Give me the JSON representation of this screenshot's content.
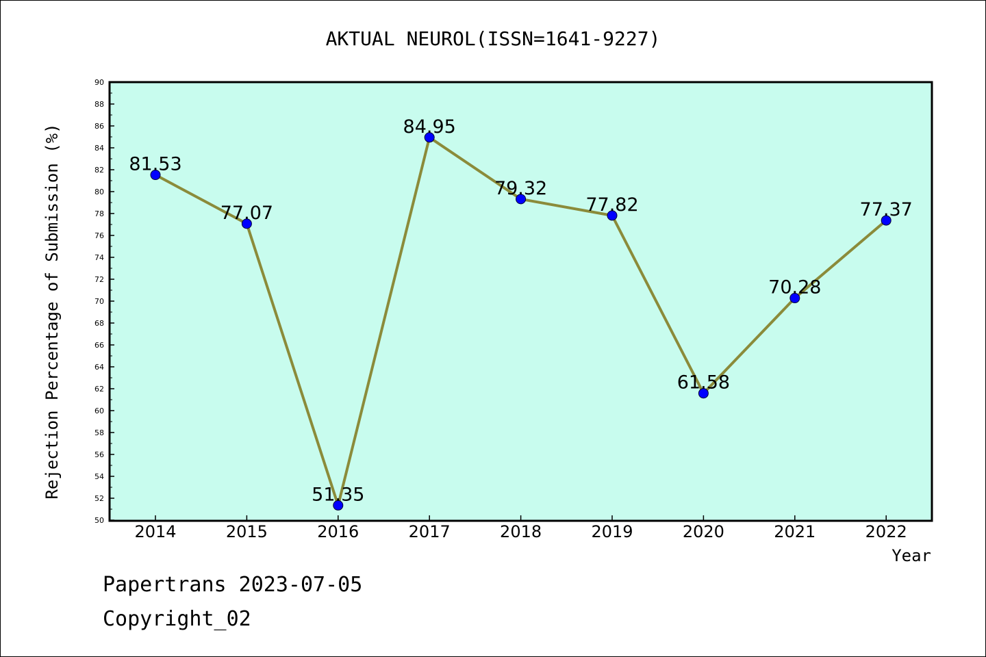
{
  "chart_data": {
    "type": "line",
    "title": "AKTUAL NEUROL(ISSN=1641-9227)",
    "xlabel": "Year",
    "ylabel": "Rejection Percentage of Submission (%)",
    "categories": [
      "2014",
      "2015",
      "2016",
      "2017",
      "2018",
      "2019",
      "2020",
      "2021",
      "2022"
    ],
    "series": [
      {
        "values": [
          81.53,
          77.07,
          51.35,
          84.95,
          79.32,
          77.82,
          61.58,
          70.28,
          77.37
        ],
        "data_labels": [
          "81.53",
          "77.07",
          "51.35",
          "84.95",
          "79.32",
          "77.82",
          "61.58",
          "70.28",
          "77.37"
        ]
      }
    ],
    "ylim": [
      50,
      90
    ],
    "y_ticks": [
      "50",
      "52",
      "54",
      "56",
      "58",
      "60",
      "62",
      "64",
      "66",
      "68",
      "70",
      "72",
      "74",
      "76",
      "78",
      "80",
      "82",
      "84",
      "86",
      "88",
      "90"
    ],
    "grid": false,
    "colors": {
      "plot_background": "#c8fcee",
      "line": "#8b8b3a",
      "marker": "#0000ff"
    }
  },
  "footer": {
    "line1": "Papertrans 2023-07-05",
    "line2": "Copyright_02"
  }
}
